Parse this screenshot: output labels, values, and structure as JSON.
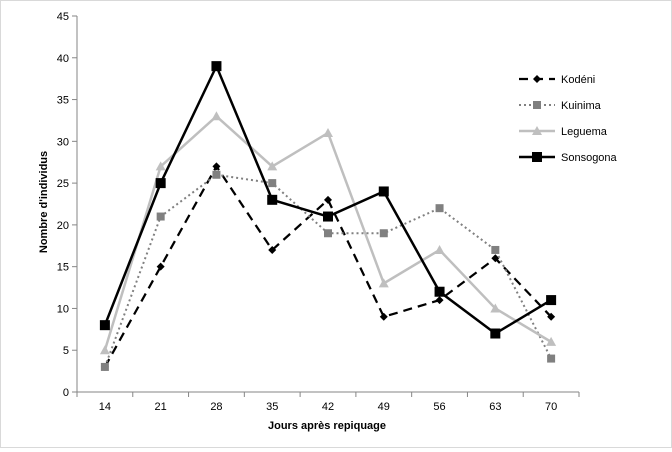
{
  "chart_data": {
    "type": "line",
    "title": "",
    "xlabel": "Jours après repiquage",
    "ylabel": "Nombre d'individus",
    "categories": [
      "14",
      "21",
      "28",
      "35",
      "42",
      "49",
      "56",
      "63",
      "70"
    ],
    "ylim": [
      0,
      45
    ],
    "yticks": [
      "0",
      "5",
      "10",
      "15",
      "20",
      "25",
      "30",
      "35",
      "40",
      "45"
    ],
    "grid": false,
    "legend_position": "right",
    "series": [
      {
        "name": "Kodéni",
        "values": [
          3,
          15,
          27,
          17,
          23,
          9,
          11,
          16,
          9
        ],
        "color": "#000000",
        "dash": "dashed",
        "marker": "diamond"
      },
      {
        "name": "Kuinima",
        "values": [
          3,
          21,
          26,
          25,
          19,
          19,
          22,
          17,
          4
        ],
        "color": "#808080",
        "dash": "dotted",
        "marker": "square"
      },
      {
        "name": "Leguema",
        "values": [
          5,
          27,
          33,
          27,
          31,
          13,
          17,
          10,
          6
        ],
        "color": "#bfbfbf",
        "dash": "solid",
        "marker": "triangle"
      },
      {
        "name": "Sonsogona",
        "values": [
          8,
          25,
          39,
          23,
          21,
          24,
          12,
          7,
          11
        ],
        "color": "#000000",
        "dash": "solid",
        "marker": "square-large"
      }
    ]
  }
}
